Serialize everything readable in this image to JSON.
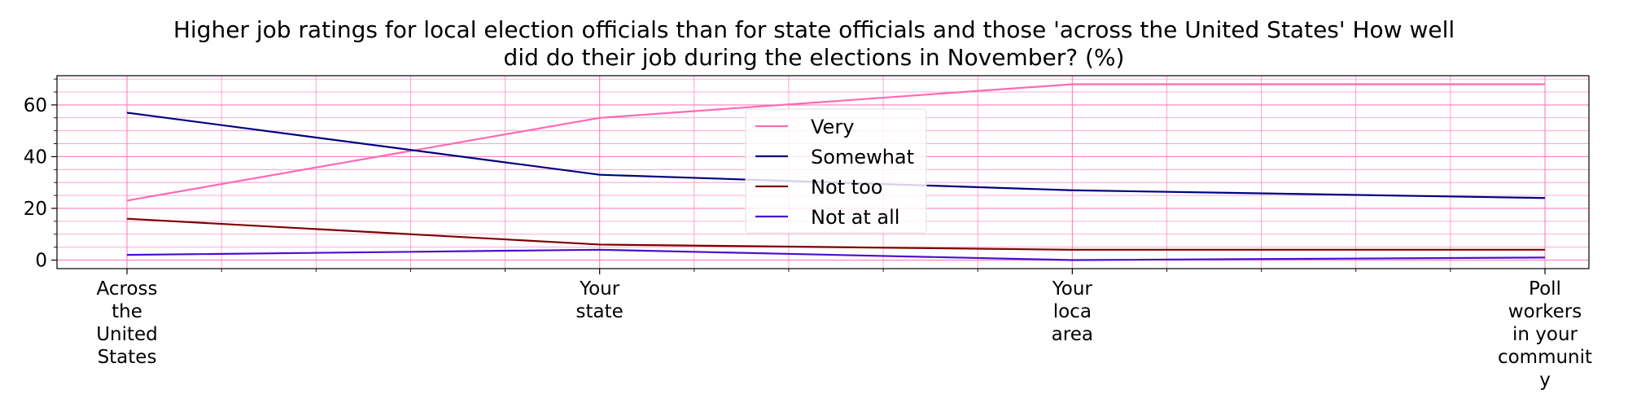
{
  "chart_data": {
    "type": "line",
    "title": "Higher job ratings for local election officials than for state officials and those 'across the United States' How well\ndid do their job during the elections in November? (%)",
    "categories": [
      "Across\nthe\nUnited\nStates",
      "Your\nstate",
      "Your\nloca\narea",
      "Poll\nworkers\nin your\ncommunit\ny"
    ],
    "series": [
      {
        "name": "Very",
        "values": [
          23,
          55,
          68,
          68
        ],
        "color": "#ff69b4"
      },
      {
        "name": "Somewhat",
        "values": [
          57,
          33,
          27,
          24
        ],
        "color": "#000080"
      },
      {
        "name": "Not too",
        "values": [
          16,
          6,
          4,
          4
        ],
        "color": "#800000"
      },
      {
        "name": "Not at all",
        "values": [
          2,
          4,
          0,
          1
        ],
        "color": "#4b0fd0"
      }
    ],
    "yticks": [
      0,
      20,
      40,
      60
    ],
    "ylim": [
      -3.3,
      71.3
    ],
    "grid": true,
    "grid_color": "#ff69b4",
    "legend_position": "center"
  }
}
